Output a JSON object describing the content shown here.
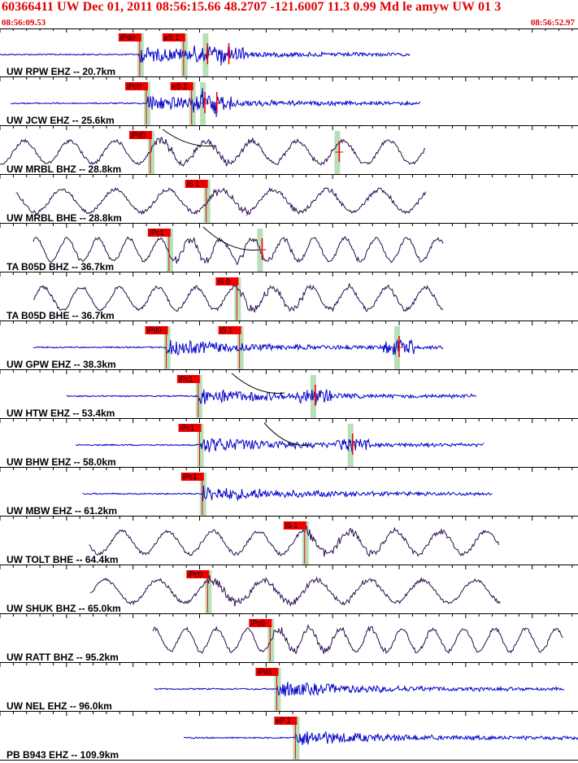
{
  "header": {
    "title": "60366411 UW Dec 01, 2011 08:56:15.66   48.2707 -121.6007 11.3 0.99 Md le amyw UW 01   3",
    "start_time": "08:56:09.53",
    "end_time": "08:56:52.97"
  },
  "colors": {
    "header": "#e00000",
    "ehz_trace": "#0000cc",
    "bh_trace": "#2a0a50",
    "pick_box": "#ee0000",
    "window": "#b8e0b8",
    "grid": "#000000"
  },
  "chart_data": {
    "type": "line",
    "title": "60366411 UW Dec 01, 2011 08:56:15.66   48.2707 -121.6007 11.3 0.99 Md le amyw UW 01   3",
    "x_range": [
      "08:56:09.53",
      "08:56:52.97"
    ],
    "series": [
      {
        "name": "UW RPW EHZ -- 20.7km",
        "label": "UW RPW EHZ -- 20.7km",
        "kind": "ehz",
        "t_start": 0.0,
        "t_end": 30.8,
        "picks": [
          {
            "text": "iPd0",
            "t": 10.5
          },
          {
            "text": "eS 1",
            "t": 13.8
          }
        ],
        "events": [
          15.6,
          17.2
        ]
      },
      {
        "name": "UW JCW EHZ -- 25.6km",
        "label": "UW JCW EHZ -- 25.6km",
        "kind": "ehz",
        "t_start": 0.8,
        "t_end": 31.6,
        "picks": [
          {
            "text": "iPc0",
            "t": 11.0
          },
          {
            "text": "eS 2",
            "t": 14.4
          }
        ],
        "events": [
          15.4,
          16.3
        ]
      },
      {
        "name": "UW MRBL BHZ -- 28.8km",
        "label": "UW MRBL BHZ -- 28.8km",
        "kind": "bh",
        "t_start": 0.0,
        "t_end": 32.0,
        "picks": [
          {
            "text": "iPd0",
            "t": 11.3
          }
        ],
        "events": [
          25.5
        ]
      },
      {
        "name": "UW MRBL BHE -- 28.8km",
        "label": "UW MRBL BHE -- 28.8km",
        "kind": "bh",
        "t_start": 1.2,
        "t_end": 32.0,
        "picks": [
          {
            "text": "iS 1",
            "t": 15.5
          }
        ],
        "events": []
      },
      {
        "name": "TA B05D BHZ -- 36.7km",
        "label": "TA B05D BHZ -- 36.7km",
        "kind": "bh",
        "t_start": 2.5,
        "t_end": 33.3,
        "picks": [
          {
            "text": "iPc1",
            "t": 12.7
          }
        ],
        "events": [
          19.7
        ]
      },
      {
        "name": "TA B05D BHE -- 36.7km",
        "label": "TA B05D BHE -- 36.7km",
        "kind": "bh",
        "t_start": 2.5,
        "t_end": 33.3,
        "picks": [
          {
            "text": "iS 0",
            "t": 17.8
          }
        ],
        "events": []
      },
      {
        "name": "UW GPW EHZ -- 38.3km",
        "label": "UW GPW EHZ -- 38.3km",
        "kind": "ehz",
        "t_start": 2.5,
        "t_end": 33.3,
        "picks": [
          {
            "text": "iPd0",
            "t": 12.5
          },
          {
            "text": "iS 1",
            "t": 18.0
          }
        ],
        "events": [
          30.0
        ]
      },
      {
        "name": "UW HTW EHZ -- 53.4km",
        "label": "UW HTW EHZ -- 53.4km",
        "kind": "ehz",
        "t_start": 5.0,
        "t_end": 35.8,
        "picks": [
          {
            "text": "iPc1",
            "t": 14.9
          }
        ],
        "events": [
          23.7
        ]
      },
      {
        "name": "UW BHW EHZ -- 58.0km",
        "label": "UW BHW EHZ -- 58.0km",
        "kind": "ehz",
        "t_start": 5.7,
        "t_end": 36.4,
        "picks": [
          {
            "text": "iPc1",
            "t": 15.0
          }
        ],
        "events": [
          26.5
        ]
      },
      {
        "name": "UW MBW EHZ -- 61.2km",
        "label": "UW MBW EHZ -- 61.2km",
        "kind": "ehz",
        "t_start": 6.2,
        "t_end": 37.0,
        "picks": [
          {
            "text": "iPc1",
            "t": 15.2
          }
        ],
        "events": []
      },
      {
        "name": "UW TOLT BHE -- 64.4km",
        "label": "UW TOLT BHE -- 64.4km",
        "kind": "bh",
        "t_start": 6.7,
        "t_end": 37.5,
        "picks": [
          {
            "text": "iS 1",
            "t": 22.9
          }
        ],
        "events": []
      },
      {
        "name": "UW SHUK BHZ -- 65.0km",
        "label": "UW SHUK BHZ -- 65.0km",
        "kind": "bh",
        "t_start": 6.8,
        "t_end": 37.6,
        "picks": [
          {
            "text": "iPc0",
            "t": 15.6
          }
        ],
        "events": []
      },
      {
        "name": "UW RATT BHZ -- 95.2km",
        "label": "UW RATT BHZ -- 95.2km",
        "kind": "bh",
        "t_start": 11.5,
        "t_end": 42.3,
        "picks": [
          {
            "text": "iPc0",
            "t": 20.3
          }
        ],
        "events": []
      },
      {
        "name": "UW NEL EHZ -- 96.0km",
        "label": "UW NEL EHZ -- 96.0km",
        "kind": "ehz",
        "t_start": 11.6,
        "t_end": 42.4,
        "picks": [
          {
            "text": "iPd1",
            "t": 20.8
          }
        ],
        "events": []
      },
      {
        "name": "PB B943 EHZ -- 109.9km",
        "label": "PB B943 EHZ -- 109.9km",
        "kind": "ehz",
        "t_start": 13.8,
        "t_end": 44.6,
        "picks": [
          {
            "text": "eP 2",
            "t": 22.2
          }
        ],
        "events": []
      }
    ]
  }
}
